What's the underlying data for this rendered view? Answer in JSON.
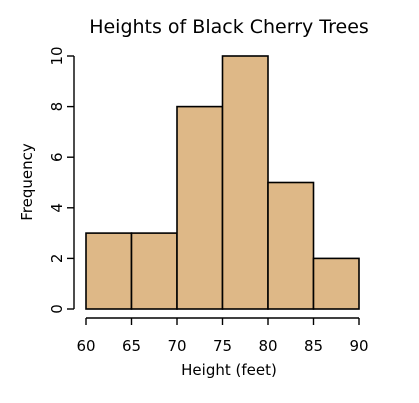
{
  "chart_data": {
    "type": "bar",
    "title": "Heights of Black Cherry Trees",
    "xlabel": "Height (feet)",
    "ylabel": "Frequency",
    "bins": [
      {
        "start": 60,
        "end": 65,
        "count": 3
      },
      {
        "start": 65,
        "end": 70,
        "count": 3
      },
      {
        "start": 70,
        "end": 75,
        "count": 8
      },
      {
        "start": 75,
        "end": 80,
        "count": 10
      },
      {
        "start": 80,
        "end": 85,
        "count": 5
      },
      {
        "start": 85,
        "end": 90,
        "count": 2
      }
    ],
    "xlim": [
      60,
      90
    ],
    "ylim": [
      0,
      10
    ],
    "x_ticks": [
      "60",
      "65",
      "70",
      "75",
      "80",
      "85",
      "90"
    ],
    "y_ticks": [
      "0",
      "2",
      "4",
      "6",
      "8",
      "10"
    ],
    "grid": false,
    "bar_color": "#DEB887",
    "edge_color": "#000000"
  }
}
